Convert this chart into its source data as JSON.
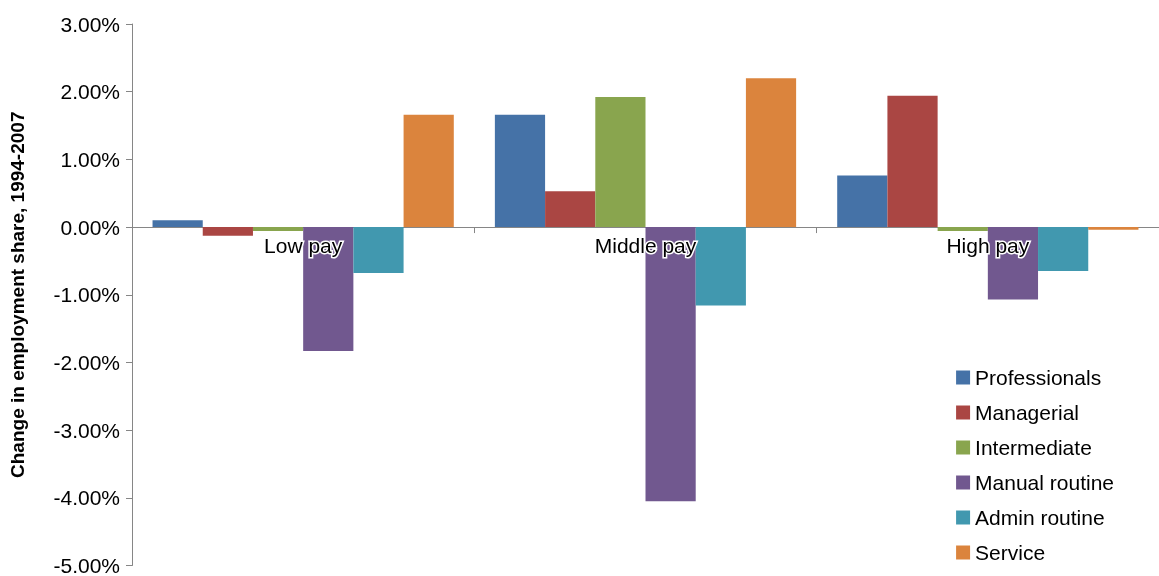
{
  "chart_data": {
    "type": "bar",
    "ylabel": "Change in employment share, 1994-2007",
    "categories": [
      "Low pay",
      "Middle pay",
      "High pay"
    ],
    "series": [
      {
        "name": "Professionals",
        "color": "#4572a7",
        "values": [
          0.1,
          1.66,
          0.76
        ]
      },
      {
        "name": "Managerial",
        "color": "#aa4643",
        "values": [
          -0.13,
          0.53,
          1.94
        ]
      },
      {
        "name": "Intermediate",
        "color": "#89a54e",
        "values": [
          -0.06,
          1.92,
          -0.06
        ]
      },
      {
        "name": "Manual routine",
        "color": "#71588f",
        "values": [
          -1.83,
          -4.05,
          -1.07
        ]
      },
      {
        "name": "Admin routine",
        "color": "#4198af",
        "values": [
          -0.68,
          -1.16,
          -0.65
        ]
      },
      {
        "name": "Service",
        "color": "#db843d",
        "values": [
          1.66,
          2.2,
          -0.04
        ]
      }
    ],
    "ylim": [
      -5,
      3
    ],
    "yticks": [
      {
        "value": -5,
        "label": "-5.00%"
      },
      {
        "value": -4,
        "label": "-4.00%"
      },
      {
        "value": -3,
        "label": "-3.00%"
      },
      {
        "value": -2,
        "label": "-2.00%"
      },
      {
        "value": -1,
        "label": "-1.00%"
      },
      {
        "value": 0,
        "label": "0.00%"
      },
      {
        "value": 1,
        "label": "1.00%"
      },
      {
        "value": 2,
        "label": "2.00%"
      },
      {
        "value": 3,
        "label": "3.00%"
      }
    ],
    "grid": false,
    "legend": "bottom right"
  }
}
